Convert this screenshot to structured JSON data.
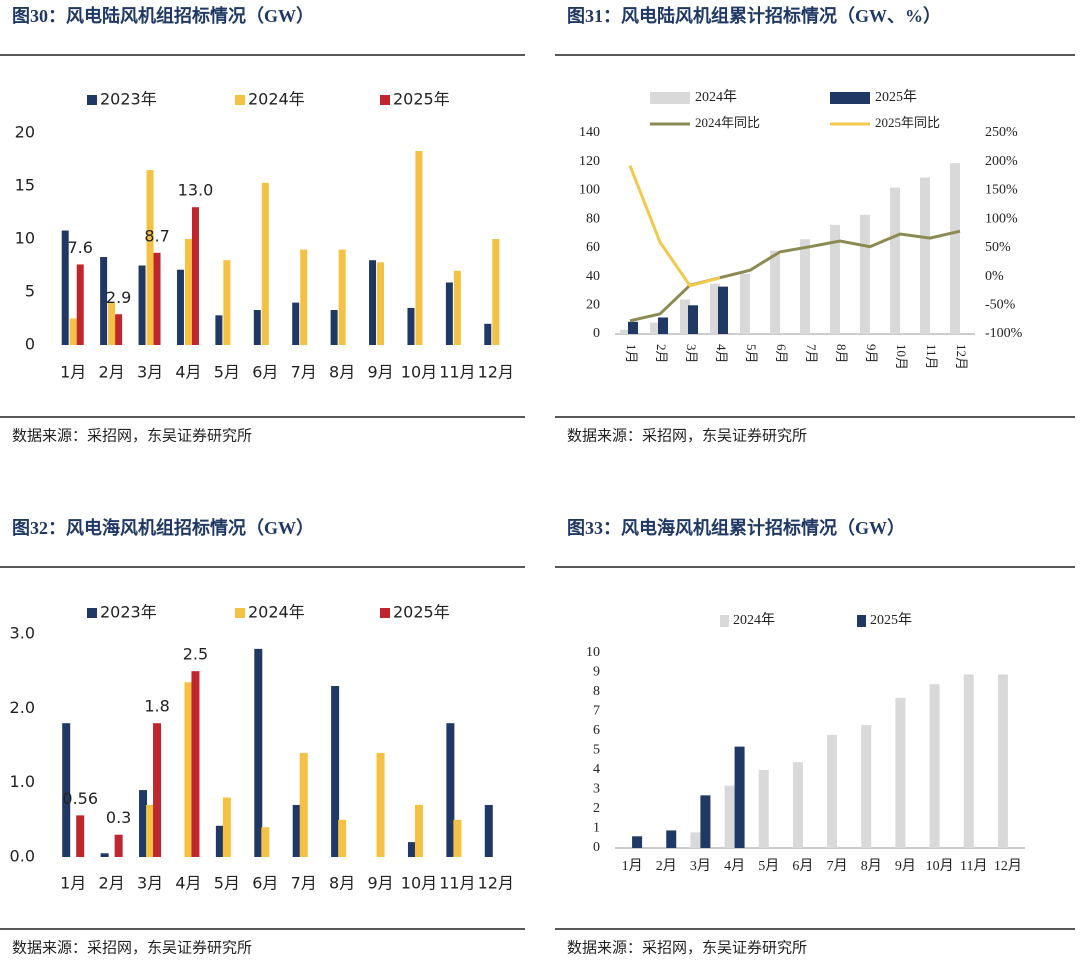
{
  "chart_data": [
    {
      "type": "bar",
      "title": "图30：风电陆风机组招标情况（GW）",
      "source": "数据来源：采招网，东吴证券研究所",
      "categories": [
        "1月",
        "2月",
        "3月",
        "4月",
        "5月",
        "6月",
        "7月",
        "8月",
        "9月",
        "10月",
        "11月",
        "12月"
      ],
      "ylim": [
        0,
        20
      ],
      "yticks": [
        0,
        5,
        10,
        15,
        20
      ],
      "series": [
        {
          "name": "2023年",
          "color": "#1f3864",
          "values": [
            10.8,
            8.3,
            7.5,
            7.1,
            2.8,
            3.3,
            4.0,
            3.3,
            8.0,
            3.5,
            5.9,
            2.0
          ]
        },
        {
          "name": "2024年",
          "color": "#f4c142",
          "values": [
            2.5,
            4.0,
            16.5,
            10.0,
            8.0,
            15.3,
            9.0,
            9.0,
            7.8,
            18.3,
            7.0,
            10.0
          ]
        },
        {
          "name": "2025年",
          "color": "#c0262d",
          "values": [
            7.6,
            2.9,
            8.7,
            13.0,
            null,
            null,
            null,
            null,
            null,
            null,
            null,
            null
          ],
          "value_labels": [
            "7.6",
            "2.9",
            "8.7",
            "13.0",
            null,
            null,
            null,
            null,
            null,
            null,
            null,
            null
          ]
        }
      ]
    },
    {
      "type": "combo",
      "title": "图31：风电陆风机组累计招标情况（GW、%）",
      "source": "数据来源：采招网，东吴证券研究所",
      "categories": [
        "1月",
        "2月",
        "3月",
        "4月",
        "5月",
        "6月",
        "7月",
        "8月",
        "9月",
        "10月",
        "11月",
        "12月"
      ],
      "ylim": [
        0,
        140
      ],
      "yticks": [
        0,
        20,
        40,
        60,
        80,
        100,
        120,
        140
      ],
      "y2lim": [
        -100,
        250
      ],
      "y2ticks": [
        {
          "value": -100,
          "label": "-100%"
        },
        {
          "value": -50,
          "label": "-50%"
        },
        {
          "value": 0,
          "label": "0%"
        },
        {
          "value": 50,
          "label": "50%"
        },
        {
          "value": 100,
          "label": "100%"
        },
        {
          "value": 150,
          "label": "150%"
        },
        {
          "value": 200,
          "label": "200%"
        },
        {
          "value": 250,
          "label": "250%"
        }
      ],
      "series": [
        {
          "name": "2024年",
          "type": "bar",
          "color": "#d9d9d9",
          "values": [
            3,
            8,
            24,
            35,
            42,
            58,
            66,
            76,
            83,
            102,
            109,
            119
          ]
        },
        {
          "name": "2025年",
          "type": "bar",
          "color": "#1f3864",
          "values": [
            8.5,
            11.5,
            20,
            33,
            null,
            null,
            null,
            null,
            null,
            null,
            null,
            null
          ]
        },
        {
          "name": "2024年同比",
          "type": "line",
          "axis": "y2",
          "color": "#8b8a53",
          "values": [
            -77,
            -65,
            -15,
            -2,
            11,
            43,
            52,
            62,
            52,
            74,
            67,
            79
          ]
        },
        {
          "name": "2025年同比",
          "type": "line",
          "axis": "y2",
          "color": "#f2c94c",
          "values": [
            193,
            60,
            -16,
            -2,
            null,
            null,
            null,
            null,
            null,
            null,
            null,
            null
          ]
        }
      ]
    },
    {
      "type": "bar",
      "title": "图32：风电海风机组招标情况（GW）",
      "source": "数据来源：采招网，东吴证券研究所",
      "categories": [
        "1月",
        "2月",
        "3月",
        "4月",
        "5月",
        "6月",
        "7月",
        "8月",
        "9月",
        "10月",
        "11月",
        "12月"
      ],
      "ylim": [
        0,
        3
      ],
      "yticks": [
        {
          "value": 0,
          "label": "0.0"
        },
        {
          "value": 1,
          "label": "1.0"
        },
        {
          "value": 2,
          "label": "2.0"
        },
        {
          "value": 3,
          "label": "3.0"
        }
      ],
      "series": [
        {
          "name": "2023年",
          "color": "#1f3864",
          "values": [
            1.8,
            0.05,
            0.9,
            null,
            0.42,
            2.8,
            0.7,
            2.3,
            null,
            0.2,
            1.8,
            0.7
          ]
        },
        {
          "name": "2024年",
          "color": "#f4c142",
          "values": [
            null,
            null,
            0.7,
            2.35,
            0.8,
            0.4,
            1.4,
            0.5,
            1.4,
            0.7,
            0.5,
            null
          ]
        },
        {
          "name": "2025年",
          "color": "#c0262d",
          "values": [
            0.56,
            0.3,
            1.8,
            2.5,
            null,
            null,
            null,
            null,
            null,
            null,
            null,
            null
          ]
        }
      ]
    },
    {
      "type": "bar",
      "title": "图33：风电海风机组累计招标情况（GW）",
      "source": "数据来源：采招网，东吴证券研究所",
      "categories": [
        "1月",
        "2月",
        "3月",
        "4月",
        "5月",
        "6月",
        "7月",
        "8月",
        "9月",
        "10月",
        "11月",
        "12月"
      ],
      "ylim": [
        0,
        10
      ],
      "yticks": [
        0,
        1,
        2,
        3,
        4,
        5,
        6,
        7,
        8,
        9,
        10
      ],
      "series": [
        {
          "name": "2024年",
          "color": "#d9d9d9",
          "values": [
            0,
            0,
            0.8,
            3.2,
            4.0,
            4.4,
            5.8,
            6.3,
            7.7,
            8.4,
            8.9,
            8.9
          ]
        },
        {
          "name": "2025年",
          "color": "#1f3864",
          "values": [
            0.6,
            0.9,
            2.7,
            5.2,
            null,
            null,
            null,
            null,
            null,
            null,
            null,
            null
          ]
        }
      ]
    }
  ]
}
